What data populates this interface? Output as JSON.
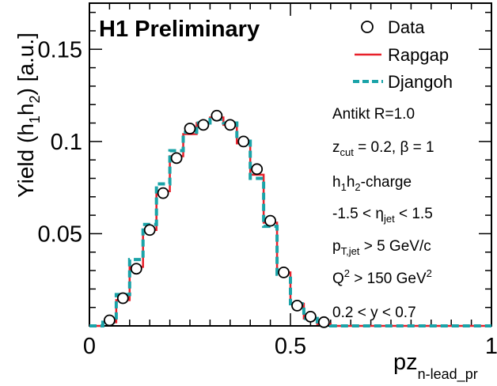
{
  "chart_data": {
    "type": "histogram",
    "title": "H1 Preliminary",
    "xlabel": "pz",
    "xlabel_sub": "n-lead_pr",
    "ylabel_parts": [
      "Yield (h",
      "1",
      "h",
      "2",
      ")  [a.u.]"
    ],
    "xlim": [
      0,
      1
    ],
    "ylim": [
      0,
      0.175
    ],
    "x_ticks": [
      {
        "value": 0,
        "label": "0"
      },
      {
        "value": 0.5,
        "label": "0.5"
      },
      {
        "value": 1,
        "label": "1"
      }
    ],
    "y_ticks": [
      {
        "value": 0.05,
        "label": "0.05"
      },
      {
        "value": 0.1,
        "label": "0.1"
      },
      {
        "value": 0.15,
        "label": "0.15"
      }
    ],
    "bin_edges": [
      0,
      0.0333,
      0.0667,
      0.1,
      0.1333,
      0.1667,
      0.2,
      0.2333,
      0.2667,
      0.3,
      0.3333,
      0.3667,
      0.4,
      0.4333,
      0.4667,
      0.5,
      0.5333,
      0.5667,
      0.6,
      0.6333,
      0.6667,
      0.7,
      0.7333,
      0.7667,
      0.8,
      0.8333,
      0.8667,
      0.9,
      0.9333,
      0.9667,
      1.0
    ],
    "series": [
      {
        "name": "Data",
        "style": "open-circle",
        "color": "#000000",
        "x": [
          0.05,
          0.0833,
          0.1167,
          0.15,
          0.1833,
          0.2167,
          0.25,
          0.2833,
          0.3167,
          0.35,
          0.3833,
          0.4167,
          0.45,
          0.4833,
          0.5167,
          0.55,
          0.5833
        ],
        "y": [
          0.003,
          0.015,
          0.031,
          0.052,
          0.072,
          0.091,
          0.107,
          0.109,
          0.114,
          0.109,
          0.1,
          0.085,
          0.057,
          0.029,
          0.011,
          0.005,
          0.002
        ]
      },
      {
        "name": "Rapgap",
        "style": "solid-step",
        "color": "#e8202a",
        "values": [
          0,
          0.002,
          0.014,
          0.032,
          0.052,
          0.073,
          0.092,
          0.104,
          0.11,
          0.113,
          0.109,
          0.099,
          0.082,
          0.056,
          0.029,
          0.012,
          0.004,
          0.001,
          0,
          0,
          0,
          0,
          0,
          0,
          0,
          0,
          0,
          0,
          0,
          0
        ]
      },
      {
        "name": "Djangoh",
        "style": "dashed-step",
        "color": "#1aa3a8",
        "values": [
          0,
          0.002,
          0.017,
          0.036,
          0.055,
          0.077,
          0.095,
          0.105,
          0.11,
          0.112,
          0.11,
          0.101,
          0.08,
          0.054,
          0.028,
          0.012,
          0.004,
          0.001,
          0,
          0,
          0,
          0,
          0,
          0,
          0,
          0,
          0,
          0,
          0,
          0
        ]
      }
    ],
    "legend_position": "top-right",
    "annotations": [
      {
        "parts": [
          {
            "t": "Antikt R=1.0"
          }
        ]
      },
      {
        "parts": [
          {
            "t": "z"
          },
          {
            "t": "cut",
            "sub": true
          },
          {
            "t": " = 0.2, β = 1"
          }
        ]
      },
      {
        "parts": [
          {
            "t": "h"
          },
          {
            "t": "1",
            "sub": true
          },
          {
            "t": "h"
          },
          {
            "t": "2",
            "sub": true
          },
          {
            "t": "-charge"
          }
        ]
      },
      {
        "parts": [
          {
            "t": "-1.5 < η"
          },
          {
            "t": "jet",
            "sub": true
          },
          {
            "t": "  < 1.5"
          }
        ]
      },
      {
        "parts": [
          {
            "t": "p"
          },
          {
            "t": "T,jet",
            "sub": true
          },
          {
            "t": " > 5 GeV/c"
          }
        ]
      },
      {
        "parts": [
          {
            "t": "Q"
          },
          {
            "t": "2",
            "sup": true
          },
          {
            "t": " >  150 GeV"
          },
          {
            "t": "2",
            "sup": true
          }
        ]
      },
      {
        "parts": [
          {
            "t": "0.2 < y < 0.7"
          }
        ]
      }
    ]
  }
}
